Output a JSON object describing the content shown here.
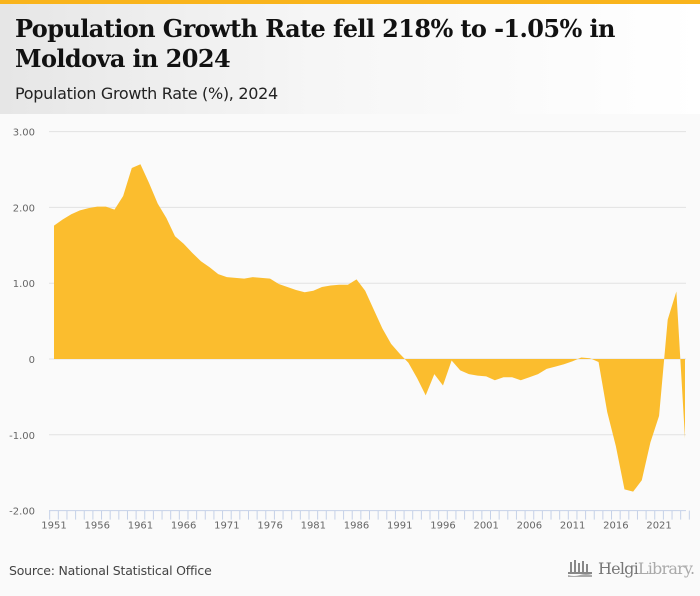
{
  "header": {
    "title": "Population Growth Rate fell 218% to -1.05% in Moldova in 2024",
    "subtitle": "Population Growth Rate (%), 2024"
  },
  "footer": {
    "source": "Source: National Statistical Office",
    "logo_bold": "Helgi",
    "logo_light": "Library."
  },
  "colors": {
    "accent": "#f9b41c",
    "area": "#fbbd2e",
    "gridline": "#e2e2e2",
    "axis_tick": "#c5d1e8"
  },
  "chart_data": {
    "type": "area",
    "title": "Population Growth Rate (%), 2024",
    "xlabel": "",
    "ylabel": "",
    "ylim": [
      -2,
      3
    ],
    "yticks": [
      3,
      2,
      1,
      0,
      -1,
      -2
    ],
    "ytick_labels": [
      "3.00",
      "2.00",
      "1.00",
      "0",
      "-1.00",
      "-2.00"
    ],
    "xtick_labels": [
      "1951",
      "1956",
      "1961",
      "1966",
      "1971",
      "1976",
      "1981",
      "1986",
      "1991",
      "1996",
      "2001",
      "2006",
      "2011",
      "2016",
      "2021"
    ],
    "grid": true,
    "legend": "none",
    "series": [
      {
        "name": "Population Growth Rate (%)",
        "x": [
          1951,
          1952,
          1953,
          1954,
          1955,
          1956,
          1957,
          1958,
          1959,
          1960,
          1961,
          1962,
          1963,
          1964,
          1965,
          1966,
          1967,
          1968,
          1969,
          1970,
          1971,
          1972,
          1973,
          1974,
          1975,
          1976,
          1977,
          1978,
          1979,
          1980,
          1981,
          1982,
          1983,
          1984,
          1985,
          1986,
          1987,
          1988,
          1989,
          1990,
          1991,
          1992,
          1993,
          1994,
          1995,
          1996,
          1997,
          1998,
          1999,
          2000,
          2001,
          2002,
          2003,
          2004,
          2005,
          2006,
          2007,
          2008,
          2009,
          2010,
          2011,
          2012,
          2013,
          2014,
          2015,
          2016,
          2017,
          2018,
          2019,
          2020,
          2021,
          2022,
          2023,
          2024
        ],
        "values": [
          1.76,
          1.84,
          1.91,
          1.96,
          1.99,
          2.01,
          2.01,
          1.97,
          2.15,
          2.52,
          2.57,
          2.32,
          2.05,
          1.86,
          1.62,
          1.52,
          1.4,
          1.29,
          1.21,
          1.12,
          1.08,
          1.07,
          1.06,
          1.08,
          1.07,
          1.06,
          0.99,
          0.95,
          0.91,
          0.88,
          0.9,
          0.95,
          0.97,
          0.98,
          0.98,
          1.05,
          0.9,
          0.65,
          0.4,
          0.2,
          0.07,
          -0.05,
          -0.25,
          -0.48,
          -0.2,
          -0.35,
          -0.02,
          -0.15,
          -0.2,
          -0.22,
          -0.23,
          -0.28,
          -0.24,
          -0.24,
          -0.28,
          -0.24,
          -0.2,
          -0.13,
          -0.1,
          -0.07,
          -0.03,
          0.02,
          0.01,
          -0.04,
          -0.7,
          -1.15,
          -1.72,
          -1.75,
          -1.6,
          -1.1,
          -0.75,
          0.52,
          0.89,
          -1.05
        ]
      }
    ]
  }
}
